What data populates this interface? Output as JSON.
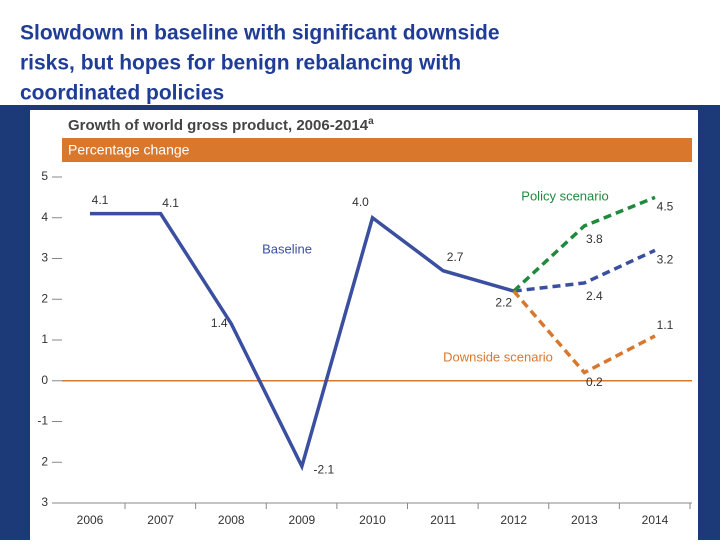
{
  "slide_title": [
    "Slowdown in baseline with significant downside",
    "risks, but hopes for benign rebalancing with",
    "coordinated policies"
  ],
  "chart_data": {
    "type": "line",
    "title": "Growth of world gross product, 2006-2014",
    "title_note": "a",
    "subtitle": "Percentage change",
    "categories": [
      "2006",
      "2007",
      "2008",
      "2009",
      "2010",
      "2011",
      "2012",
      "2013",
      "2014"
    ],
    "ylim": [
      -3,
      5
    ],
    "yticks": [
      {
        "value": -3,
        "label": "3"
      },
      {
        "value": -2,
        "label": "2"
      },
      -1,
      0,
      1,
      2,
      3,
      4,
      5
    ],
    "series": [
      {
        "name": "Baseline",
        "color": "#3b4fa0",
        "dashed_from": 6,
        "values": [
          4.1,
          4.1,
          1.4,
          -2.1,
          4.0,
          2.7,
          2.2,
          2.4,
          3.2
        ],
        "value_labels": [
          "4.1",
          "4.1",
          "1.4",
          "-2.1",
          "4.0",
          "2.7",
          "2.2",
          "2.4",
          "3.2"
        ]
      },
      {
        "name": "Policy scenario",
        "color": "#1f8a3c",
        "dashed_from": 6,
        "values": [
          null,
          null,
          null,
          null,
          null,
          null,
          2.2,
          3.8,
          4.5
        ]
      },
      {
        "name": "Downside scenario",
        "color": "#d9782d",
        "dashed_from": 6,
        "values": [
          null,
          null,
          null,
          null,
          null,
          null,
          2.2,
          0.2,
          1.1
        ]
      }
    ]
  }
}
